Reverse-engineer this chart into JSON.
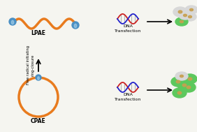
{
  "background_color": "#f5f5f0",
  "lpae_label": "LPAE",
  "cpae_label": "CPAE",
  "side_label": "Free radical initiating\nring-closure",
  "dna_label_top": "DNA\nTransfection",
  "dna_label_bot": "DNA\nTransfection",
  "orange_color": "#E87B1E",
  "blue_color": "#4A90C4",
  "light_blue": "#A8D0E8",
  "green_color": "#5DC85D",
  "cell_gray": "#D8D8D8",
  "nucleus_color": "#C8A050",
  "dna_red": "#CC2222",
  "dna_blue": "#2222CC"
}
